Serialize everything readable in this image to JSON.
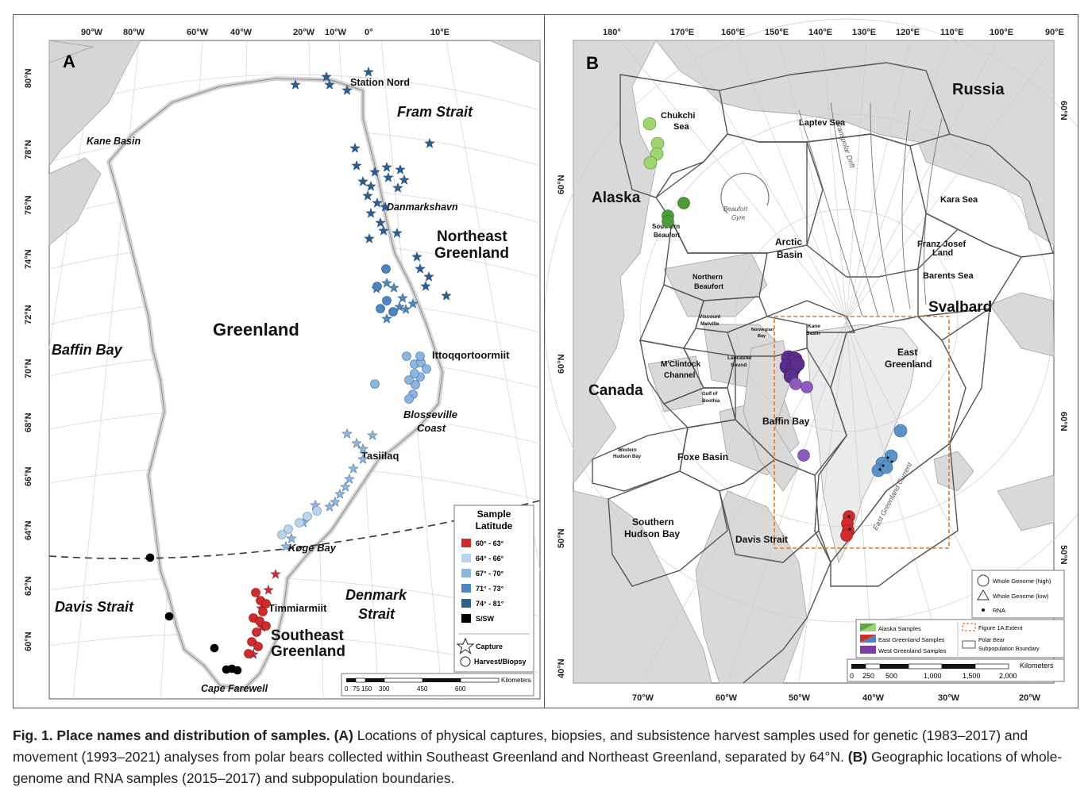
{
  "panelA": {
    "letter": "A",
    "lon_ticks": [
      "90°W",
      "80°W",
      "60°W",
      "40°W",
      "20°W",
      "10°W",
      "0°",
      "10°E"
    ],
    "lat_ticks": [
      "80°N",
      "78°N",
      "76°N",
      "74°N",
      "72°N",
      "70°N",
      "68°N",
      "66°N",
      "64°N",
      "62°N",
      "60°N"
    ],
    "places": {
      "station_nord": "Station Nord",
      "fram_strait": "Fram Strait",
      "kane_basin": "Kane Basin",
      "danmarkshavn": "Danmarkshavn",
      "ne_line1": "Northeast",
      "ne_line2": "Greenland",
      "greenland": "Greenland",
      "baffin_bay": "Baffin Bay",
      "ittoq": "Ittoqqortoormiit",
      "blosseville1": "Blosseville",
      "blosseville2": "Coast",
      "tasiilaq": "Tasiilaq",
      "koge_bay": "Køge Bay",
      "davis_strait": "Davis Strait",
      "timmiarmiit": "Timmiarmiit",
      "denmark1": "Denmark",
      "denmark2": "Strait",
      "se_line1": "Southeast",
      "se_line2": "Greenland",
      "cape_farewell": "Cape Farewell"
    },
    "legend": {
      "title1": "Sample",
      "title2": "Latitude",
      "classes": [
        {
          "label": "60° - 63°",
          "color": "#d42a2a"
        },
        {
          "label": "64° - 66°",
          "color": "#b9d3ea"
        },
        {
          "label": "67° - 70°",
          "color": "#8ab6df"
        },
        {
          "label": "71° - 73°",
          "color": "#4a87c0"
        },
        {
          "label": "74° - 81°",
          "color": "#2a5f93"
        },
        {
          "label": "S/SW",
          "color": "#000000"
        }
      ],
      "capture": "Capture",
      "harvest": "Harvest/Biopsy"
    },
    "scale": {
      "unit": "Kilometers",
      "ticks": [
        "0",
        "75",
        "150",
        "300",
        "450",
        "600"
      ]
    }
  },
  "panelB": {
    "letter": "B",
    "top_lon_ticks": [
      "180°",
      "170°E",
      "160°E",
      "150°E",
      "140°E",
      "130°E",
      "120°E",
      "110°E",
      "100°E",
      "90°E"
    ],
    "bottom_lon_ticks": [
      "70°W",
      "60°W",
      "50°W",
      "40°W",
      "30°W",
      "20°W"
    ],
    "left_lat_ticks": [
      "60°N",
      "60°N",
      "50°N",
      "40°N"
    ],
    "right_lat_ticks": [
      "60°N",
      "60°N",
      "50°N"
    ],
    "places": {
      "russia": "Russia",
      "chukchi1": "Chukchi",
      "chukchi2": "Sea",
      "laptev": "Laptev Sea",
      "alaska": "Alaska",
      "kara": "Kara Sea",
      "beaufort_gyre1": "Beaufort",
      "beaufort_gyre2": "Gyre",
      "southern_beaufort1": "Southern",
      "southern_beaufort2": "Beaufort",
      "arctic1": "Arctic",
      "arctic2": "Basin",
      "franz1": "Franz Josef",
      "franz2": "Land",
      "transpolar": "Transpolar Drift",
      "northern_beaufort1": "Northern",
      "northern_beaufort2": "Beaufort",
      "barents": "Barents Sea",
      "svalbard": "Svalbard",
      "viscount1": "Viscount",
      "viscount2": "Melville",
      "kane1": "Kane",
      "kane2": "Basin",
      "norwegian1": "Norwegian",
      "norwegian2": "Bay",
      "lancaster1": "Lancaster",
      "lancaster2": "Sound",
      "mclintock1": "M'Clintock",
      "mclintock2": "Channel",
      "east_greenland1": "East",
      "east_greenland2": "Greenland",
      "canada": "Canada",
      "gulf_boothia1": "Gulf of",
      "gulf_boothia2": "Boothia",
      "baffin": "Baffin Bay",
      "western_hudson1": "Western",
      "western_hudson2": "Hudson Bay",
      "foxe": "Foxe Basin",
      "eg_current": "East Greenland Current",
      "southern_hudson1": "Southern",
      "southern_hudson2": "Hudson Bay",
      "davis": "Davis Strait"
    },
    "legend_top": {
      "whole_high": "Whole Genome (high)",
      "whole_low": "Whole Genome (low)",
      "rna": "RNA"
    },
    "legend_bottom": {
      "alaska_samples": "Alaska Samples",
      "east_samples": "East Greenland Samples",
      "west_samples": "West Greenland Samples",
      "fig_extent": "Figure 1A Extent",
      "boundary1": "Polar Bear",
      "boundary2": "Subpopulation Boundary"
    },
    "scale": {
      "unit": "Kilometers",
      "ticks": [
        "0",
        "250",
        "500",
        "1,000",
        "1,500",
        "2,000"
      ]
    }
  },
  "caption": {
    "fig": "Fig. 1. Place names and distribution of samples.",
    "a_tag": "(A)",
    "a_text": " Locations of physical captures, biopsies, and subsistence harvest samples used for genetic (1983–2017) and movement (1993–2021) analyses from polar bears collected within Southeast Greenland and Northeast Greenland, separated by 64°N. ",
    "b_tag": "(B)",
    "b_text": " Geographic locations of whole-genome and RNA samples (2015–2017) and subpopulation boundaries."
  }
}
